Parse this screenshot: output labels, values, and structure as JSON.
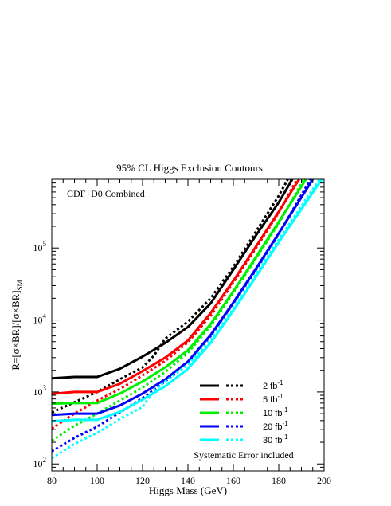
{
  "chart_data": {
    "type": "line",
    "title": "95% CL Higgs Exclusion Contours",
    "xlabel": "Higgs Mass (GeV)",
    "ylabel": "R=[σ×BR]/[σ×BR]",
    "ylabel_subscript": "SM",
    "annotation": "CDF+D0 Combined",
    "footnote": "Systematic Error included",
    "xlim": [
      80,
      200
    ],
    "ylim": [
      80,
      900000
    ],
    "yscale": "log",
    "x_ticks": [
      "80",
      "100",
      "120",
      "140",
      "160",
      "180",
      "200"
    ],
    "y_ticks": [
      {
        "value": 100,
        "base": "10",
        "exp": "2"
      },
      {
        "value": 1000,
        "base": "10",
        "exp": "3"
      },
      {
        "value": 10000,
        "base": "10",
        "exp": "4"
      },
      {
        "value": 100000,
        "base": "10",
        "exp": "5"
      }
    ],
    "legend_position": "bottom-right",
    "legend_unit": "fb",
    "legend_unit_exp": "-1",
    "series": [
      {
        "name": "2",
        "color": "#000000",
        "style": "solid",
        "x": [
          80,
          90,
          100,
          110,
          120,
          130,
          140,
          150,
          160,
          170,
          180,
          186
        ],
        "y": [
          1550,
          1620,
          1620,
          2100,
          3100,
          4800,
          8000,
          17000,
          50000,
          150000,
          430000,
          900000
        ]
      },
      {
        "name": "2",
        "color": "#000000",
        "style": "dotted",
        "x": [
          80,
          90,
          100,
          110,
          120,
          125,
          130,
          140,
          150,
          160,
          170,
          180,
          184
        ],
        "y": [
          520,
          720,
          1000,
          1500,
          2200,
          3200,
          5500,
          9500,
          20000,
          55000,
          170000,
          530000,
          900000
        ]
      },
      {
        "name": "5",
        "color": "#ff0000",
        "style": "solid",
        "x": [
          80,
          90,
          100,
          110,
          120,
          130,
          140,
          150,
          160,
          170,
          180,
          189
        ],
        "y": [
          940,
          1000,
          1000,
          1300,
          1950,
          3000,
          5200,
          12500,
          35000,
          105000,
          320000,
          900000
        ]
      },
      {
        "name": "5",
        "color": "#ff0000",
        "style": "dotted",
        "x": [
          80,
          90,
          100,
          110,
          120,
          130,
          140,
          150,
          160,
          170,
          180,
          188
        ],
        "y": [
          310,
          500,
          760,
          1100,
          1700,
          2700,
          4900,
          11500,
          33000,
          100000,
          310000,
          900000
        ]
      },
      {
        "name": "10",
        "color": "#00ee00",
        "style": "solid",
        "x": [
          80,
          90,
          100,
          110,
          120,
          130,
          140,
          150,
          160,
          170,
          180,
          192
        ],
        "y": [
          690,
          700,
          700,
          950,
          1400,
          2200,
          3800,
          8800,
          25000,
          75000,
          230000,
          900000
        ]
      },
      {
        "name": "10",
        "color": "#00ee00",
        "style": "dotted",
        "x": [
          80,
          90,
          100,
          110,
          120,
          130,
          140,
          150,
          160,
          170,
          180,
          191
        ],
        "y": [
          210,
          340,
          500,
          760,
          1150,
          1900,
          3500,
          8300,
          24000,
          72000,
          220000,
          900000
        ]
      },
      {
        "name": "20",
        "color": "#0000ff",
        "style": "solid",
        "x": [
          80,
          90,
          100,
          110,
          120,
          130,
          140,
          150,
          160,
          170,
          180,
          195
        ],
        "y": [
          480,
          500,
          500,
          650,
          950,
          1500,
          2650,
          6200,
          17500,
          52000,
          160000,
          900000
        ]
      },
      {
        "name": "20",
        "color": "#0000ff",
        "style": "dotted",
        "x": [
          80,
          90,
          100,
          110,
          120,
          130,
          140,
          150,
          160,
          170,
          180,
          194
        ],
        "y": [
          150,
          230,
          330,
          520,
          820,
          1400,
          2600,
          6000,
          17000,
          50000,
          155000,
          900000
        ]
      },
      {
        "name": "30",
        "color": "#00ffff",
        "style": "solid",
        "x": [
          80,
          90,
          100,
          110,
          120,
          130,
          140,
          150,
          160,
          170,
          180,
          199
        ],
        "y": [
          390,
          410,
          410,
          530,
          780,
          1200,
          2100,
          4800,
          13500,
          40000,
          120000,
          900000
        ]
      },
      {
        "name": "30",
        "color": "#00ffff",
        "style": "dotted",
        "x": [
          80,
          90,
          100,
          110,
          120,
          125,
          130,
          140,
          150,
          160,
          170,
          180,
          198
        ],
        "y": [
          120,
          190,
          270,
          420,
          620,
          1050,
          1400,
          2400,
          5200,
          14500,
          43000,
          130000,
          900000
        ]
      }
    ]
  }
}
